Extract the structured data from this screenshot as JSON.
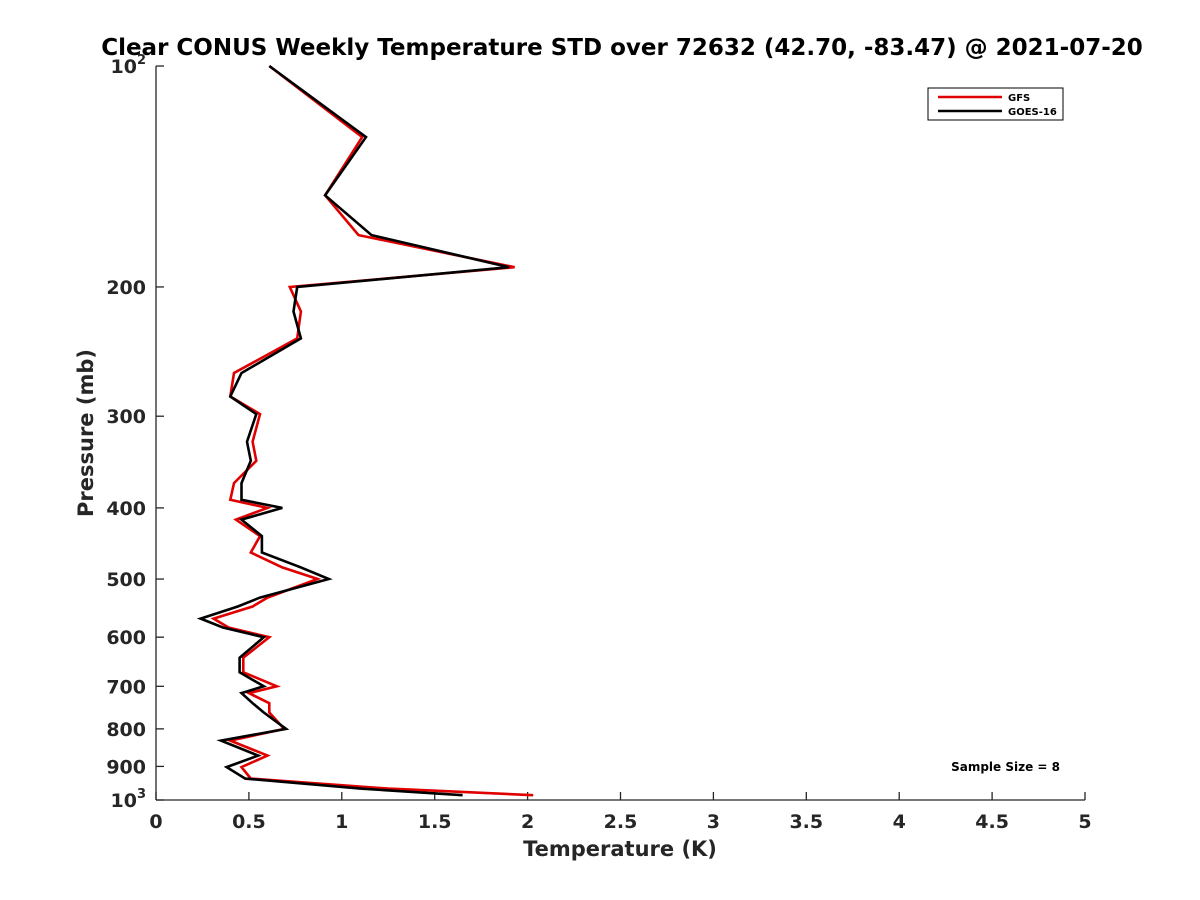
{
  "chart_data": {
    "type": "line",
    "title": "Clear CONUS Weekly Temperature STD over 72632 (42.70, -83.47) @ 2021-07-20",
    "xlabel": "Temperature (K)",
    "ylabel": "Pressure (mb)",
    "xlim": [
      0,
      5
    ],
    "ylim": [
      100,
      1000
    ],
    "y_scale": "log",
    "y_reversed": true,
    "grid": false,
    "legend_position": "top-right",
    "x_ticks": [
      "0",
      "0.5",
      "1",
      "1.5",
      "2",
      "2.5",
      "3",
      "3.5",
      "4",
      "4.5",
      "5"
    ],
    "x_tick_values": [
      0,
      0.5,
      1,
      1.5,
      2,
      2.5,
      3,
      3.5,
      4,
      4.5,
      5
    ],
    "y_ticks": [
      {
        "value": 100,
        "base": "10",
        "exp": "2"
      },
      {
        "value": 200,
        "base": "200",
        "exp": ""
      },
      {
        "value": 300,
        "base": "300",
        "exp": ""
      },
      {
        "value": 400,
        "base": "400",
        "exp": ""
      },
      {
        "value": 500,
        "base": "500",
        "exp": ""
      },
      {
        "value": 600,
        "base": "600",
        "exp": ""
      },
      {
        "value": 700,
        "base": "700",
        "exp": ""
      },
      {
        "value": 800,
        "base": "800",
        "exp": ""
      },
      {
        "value": 900,
        "base": "900",
        "exp": ""
      },
      {
        "value": 1000,
        "base": "10",
        "exp": "3"
      }
    ],
    "annotation": "Sample Size = 8",
    "series": [
      {
        "name": "GFS",
        "color": "#e00000",
        "points": [
          [
            0.61,
            100
          ],
          [
            1.11,
            125
          ],
          [
            0.91,
            150
          ],
          [
            1.09,
            170
          ],
          [
            1.93,
            188
          ],
          [
            0.72,
            200
          ],
          [
            0.78,
            216
          ],
          [
            0.76,
            235
          ],
          [
            0.42,
            262
          ],
          [
            0.4,
            282
          ],
          [
            0.56,
            298
          ],
          [
            0.52,
            325
          ],
          [
            0.54,
            345
          ],
          [
            0.42,
            370
          ],
          [
            0.4,
            390
          ],
          [
            0.6,
            400
          ],
          [
            0.43,
            415
          ],
          [
            0.56,
            437
          ],
          [
            0.51,
            460
          ],
          [
            0.68,
            482
          ],
          [
            0.87,
            500
          ],
          [
            0.6,
            530
          ],
          [
            0.52,
            545
          ],
          [
            0.31,
            566
          ],
          [
            0.39,
            582
          ],
          [
            0.61,
            600
          ],
          [
            0.47,
            640
          ],
          [
            0.47,
            670
          ],
          [
            0.65,
            700
          ],
          [
            0.5,
            715
          ],
          [
            0.61,
            738
          ],
          [
            0.61,
            760
          ],
          [
            0.69,
            800
          ],
          [
            0.4,
            830
          ],
          [
            0.6,
            870
          ],
          [
            0.46,
            902
          ],
          [
            0.51,
            935
          ],
          [
            1.25,
            965
          ],
          [
            2.03,
            985
          ]
        ]
      },
      {
        "name": "GOES-16",
        "color": "#000000",
        "points": [
          [
            0.61,
            100
          ],
          [
            1.13,
            125
          ],
          [
            0.91,
            150
          ],
          [
            1.16,
            170
          ],
          [
            1.9,
            188
          ],
          [
            0.76,
            200
          ],
          [
            0.74,
            216
          ],
          [
            0.78,
            235
          ],
          [
            0.46,
            262
          ],
          [
            0.4,
            282
          ],
          [
            0.54,
            298
          ],
          [
            0.49,
            325
          ],
          [
            0.51,
            345
          ],
          [
            0.46,
            370
          ],
          [
            0.46,
            390
          ],
          [
            0.68,
            400
          ],
          [
            0.46,
            415
          ],
          [
            0.57,
            437
          ],
          [
            0.57,
            460
          ],
          [
            0.78,
            482
          ],
          [
            0.93,
            500
          ],
          [
            0.56,
            530
          ],
          [
            0.44,
            545
          ],
          [
            0.24,
            566
          ],
          [
            0.36,
            582
          ],
          [
            0.58,
            600
          ],
          [
            0.45,
            640
          ],
          [
            0.45,
            670
          ],
          [
            0.58,
            700
          ],
          [
            0.46,
            715
          ],
          [
            0.52,
            738
          ],
          [
            0.58,
            760
          ],
          [
            0.7,
            800
          ],
          [
            0.35,
            830
          ],
          [
            0.55,
            870
          ],
          [
            0.38,
            902
          ],
          [
            0.48,
            935
          ],
          [
            1.1,
            965
          ],
          [
            1.65,
            985
          ]
        ]
      }
    ]
  }
}
